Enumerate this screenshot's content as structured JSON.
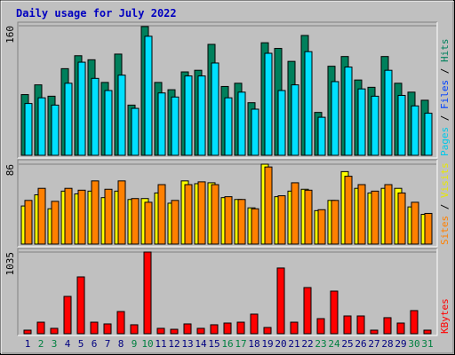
{
  "chart_data": [
    {
      "type": "bar",
      "title": "Daily usage for July 2022",
      "ylim": [
        0,
        160
      ],
      "yticks": [
        160
      ],
      "legend_separator": " / ",
      "legend": [
        {
          "text": "Pages",
          "color": "#00c8e8"
        },
        {
          "text": "Files",
          "color": "#0040ff"
        },
        {
          "text": "Hits",
          "color": "#00805c"
        }
      ],
      "series": [
        {
          "color": "#00805c",
          "values": [
            75,
            87,
            73,
            107,
            123,
            118,
            90,
            125,
            62,
            159,
            90,
            81,
            103,
            105,
            137,
            85,
            89,
            65,
            139,
            132,
            116,
            148,
            53,
            110,
            122,
            93,
            84,
            122,
            89,
            78,
            68
          ]
        },
        {
          "color": "#00e0ff",
          "values": [
            64,
            71,
            62,
            89,
            115,
            95,
            80,
            99,
            58,
            147,
            77,
            72,
            98,
            98,
            114,
            71,
            78,
            57,
            126,
            80,
            87,
            128,
            47,
            91,
            109,
            82,
            73,
            105,
            74,
            61,
            52
          ]
        }
      ]
    },
    {
      "type": "bar",
      "ylim": [
        0,
        86
      ],
      "yticks": [
        86
      ],
      "legend_separator": " / ",
      "legend": [
        {
          "text": "Sites",
          "color": "#ff8000"
        },
        {
          "text": "Visits",
          "color": "#e8e800"
        }
      ],
      "series": [
        {
          "color": "#ffff00",
          "values": [
            41,
            53,
            38,
            57,
            54,
            57,
            50,
            57,
            48,
            49,
            55,
            44,
            68,
            65,
            66,
            50,
            48,
            39,
            86,
            51,
            57,
            59,
            36,
            47,
            78,
            60,
            55,
            60,
            60,
            40,
            32
          ]
        },
        {
          "color": "#ff8000",
          "values": [
            47,
            60,
            46,
            60,
            58,
            68,
            59,
            68,
            49,
            45,
            64,
            47,
            64,
            67,
            64,
            51,
            48,
            38,
            83,
            52,
            66,
            58,
            37,
            47,
            73,
            64,
            57,
            64,
            55,
            45,
            33
          ]
        }
      ]
    },
    {
      "type": "bar",
      "ylim": [
        0,
        1035
      ],
      "yticks": [
        1035
      ],
      "legend": [
        {
          "text": "KBytes",
          "color": "#ff0000"
        }
      ],
      "categories": [
        "1",
        "2",
        "3",
        "4",
        "5",
        "6",
        "7",
        "8",
        "9",
        "10",
        "11",
        "12",
        "13",
        "14",
        "15",
        "16",
        "17",
        "18",
        "19",
        "20",
        "21",
        "22",
        "23",
        "24",
        "25",
        "26",
        "27",
        "28",
        "29",
        "30",
        "31"
      ],
      "category_colors": [
        "#000080",
        "#008040",
        "#008040",
        "#000080",
        "#000080",
        "#000080",
        "#000080",
        "#000080",
        "#008040",
        "#008040",
        "#000080",
        "#000080",
        "#000080",
        "#000080",
        "#000080",
        "#008040",
        "#008040",
        "#000080",
        "#000080",
        "#000080",
        "#000080",
        "#000080",
        "#008040",
        "#008040",
        "#000080",
        "#000080",
        "#000080",
        "#000080",
        "#000080",
        "#008040",
        "#008040"
      ],
      "series": [
        {
          "color": "#ff0000",
          "values": [
            45,
            146,
            68,
            473,
            720,
            146,
            124,
            281,
            113,
            1035,
            68,
            56,
            124,
            68,
            113,
            135,
            146,
            248,
            79,
            833,
            146,
            585,
            191,
            540,
            225,
            225,
            45,
            203,
            135,
            293,
            45
          ]
        }
      ]
    }
  ]
}
